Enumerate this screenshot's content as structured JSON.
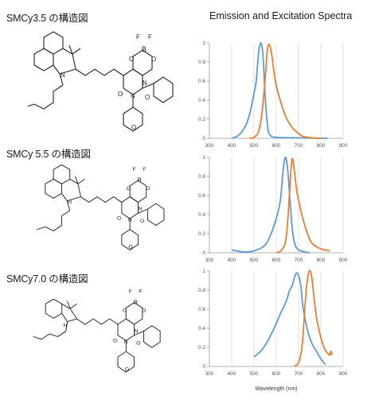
{
  "header_title": "Emission and Excitation Spectra",
  "colors": {
    "excitation": "#5b9bd5",
    "emission": "#ed7d31",
    "grid": "#d9d9d9",
    "axis": "#9a9a9a"
  },
  "compounds": [
    {
      "title": "SMCy3.5 の構造図",
      "atoms": {
        "methyl_label": "",
        "b": "B",
        "f1": "F",
        "f2": "F",
        "o1": "O",
        "o2": "O",
        "n1": "N",
        "n2": "N",
        "n3": "N",
        "o3": "O",
        "o4": "O",
        "o5": "O"
      }
    },
    {
      "title": "SMCy 5.5 の構造図",
      "atoms": {
        "methyl_label": "",
        "b": "B",
        "f1": "F",
        "f2": "F",
        "o1": "O",
        "o2": "O",
        "n1": "N",
        "n2": "N",
        "n3": "N",
        "o3": "O",
        "o4": "O",
        "o5": "O"
      }
    },
    {
      "title": "SMCy7.0 の構造図",
      "atoms": {
        "methyl_label": "",
        "b": "B",
        "f1": "F",
        "f2": "F",
        "o1": "O",
        "o2": "O",
        "n1": "N",
        "n2": "N",
        "n3": "N",
        "o3": "O",
        "o4": "O",
        "o5": "O"
      }
    }
  ],
  "chart_data": [
    {
      "type": "line",
      "xlim": [
        300,
        900
      ],
      "ylim": [
        0,
        1
      ],
      "xticks": [
        "300",
        "400",
        "500",
        "600",
        "700",
        "800",
        "900"
      ],
      "yticks": [
        "0",
        "0.2",
        "0.4",
        "0.6",
        "0.8",
        "1"
      ],
      "xlabel": "",
      "series": [
        {
          "role": "excitation",
          "x": [
            400,
            430,
            460,
            480,
            500,
            510,
            520,
            530,
            540,
            550,
            560,
            570,
            600,
            700,
            830
          ],
          "y": [
            0,
            0.03,
            0.12,
            0.25,
            0.47,
            0.6,
            0.88,
            1.0,
            0.88,
            0.45,
            0.15,
            0.04,
            0.01,
            0.005,
            0
          ]
        },
        {
          "role": "emission",
          "x": [
            480,
            500,
            520,
            535,
            550,
            560,
            570,
            580,
            590,
            600,
            620,
            640,
            660,
            680,
            700,
            720,
            760,
            800
          ],
          "y": [
            0,
            0.01,
            0.07,
            0.25,
            0.62,
            0.93,
            0.98,
            0.87,
            0.69,
            0.55,
            0.38,
            0.24,
            0.15,
            0.09,
            0.05,
            0.02,
            0.005,
            0
          ]
        }
      ]
    },
    {
      "type": "line",
      "xlim": [
        300,
        900
      ],
      "ylim": [
        0,
        1
      ],
      "xticks": [
        "300",
        "400",
        "500",
        "600",
        "700",
        "800",
        "900"
      ],
      "yticks": [
        "0",
        "0.2",
        "0.4",
        "0.6",
        "0.8",
        "1"
      ],
      "xlabel": "",
      "series": [
        {
          "role": "excitation",
          "x": [
            400,
            450,
            500,
            550,
            580,
            600,
            610,
            620,
            630,
            640,
            650,
            660,
            670,
            680,
            700,
            750
          ],
          "y": [
            0.03,
            0.01,
            0.02,
            0.08,
            0.22,
            0.36,
            0.45,
            0.58,
            0.85,
            1.0,
            0.9,
            0.6,
            0.3,
            0.12,
            0.03,
            0
          ]
        },
        {
          "role": "emission",
          "x": [
            600,
            620,
            640,
            650,
            660,
            670,
            680,
            690,
            700,
            720,
            740,
            760,
            800,
            840
          ],
          "y": [
            0,
            0.02,
            0.1,
            0.3,
            0.65,
            0.98,
            0.88,
            0.68,
            0.55,
            0.35,
            0.2,
            0.1,
            0.04,
            0.02
          ]
        }
      ]
    },
    {
      "type": "line",
      "xlim": [
        300,
        900
      ],
      "ylim": [
        0,
        1
      ],
      "xticks": [
        "300",
        "400",
        "500",
        "600",
        "700",
        "800",
        "900"
      ],
      "yticks": [
        "0",
        "0.2",
        "0.4",
        "0.6",
        "0.8",
        "1"
      ],
      "xlabel": "Wavelength (nm)",
      "series": [
        {
          "role": "excitation",
          "x": [
            500,
            530,
            560,
            590,
            620,
            640,
            650,
            660,
            670,
            680,
            690,
            700,
            710,
            720,
            740,
            760,
            780,
            800,
            820
          ],
          "y": [
            0.1,
            0.16,
            0.26,
            0.4,
            0.56,
            0.66,
            0.72,
            0.8,
            0.84,
            0.92,
            0.98,
            0.95,
            0.85,
            0.62,
            0.38,
            0.24,
            0.16,
            0.08,
            0.02
          ]
        },
        {
          "role": "emission",
          "x": [
            680,
            700,
            715,
            725,
            735,
            745,
            752,
            760,
            770,
            780,
            790,
            800,
            810,
            820,
            830,
            840,
            845,
            850
          ],
          "y": [
            0,
            0.04,
            0.2,
            0.5,
            0.82,
            0.98,
            1.0,
            0.92,
            0.7,
            0.52,
            0.4,
            0.3,
            0.22,
            0.17,
            0.14,
            0.12,
            0.16,
            0.12
          ]
        }
      ]
    }
  ]
}
